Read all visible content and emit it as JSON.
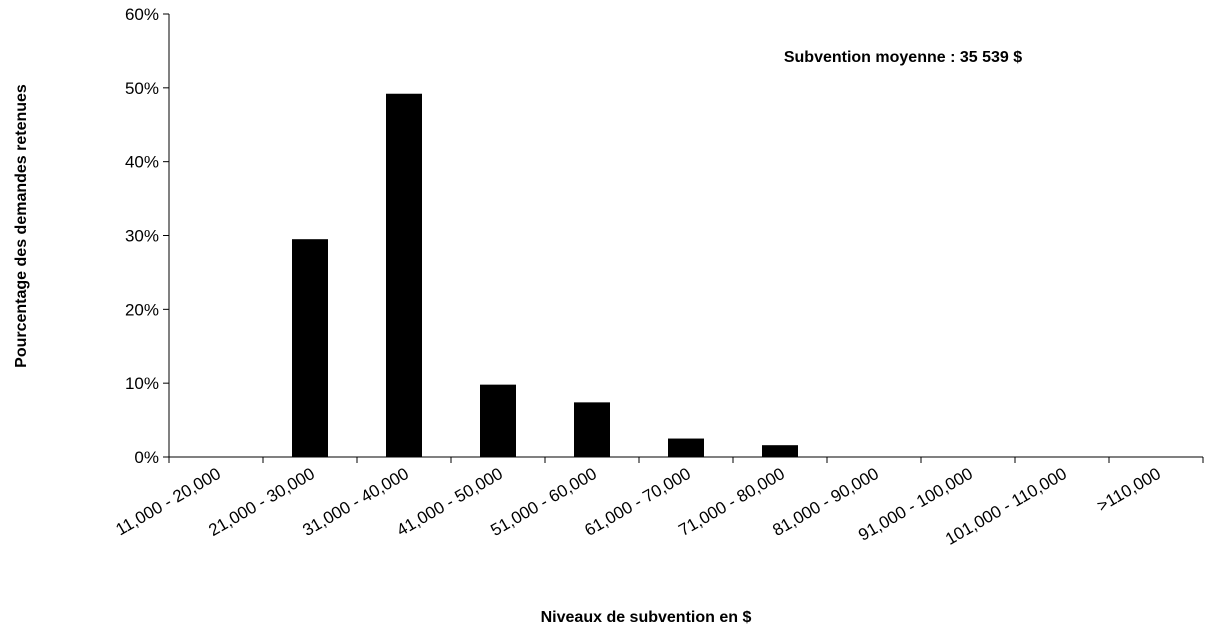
{
  "chart_data": {
    "type": "bar",
    "title": "",
    "xlabel": "Niveaux de subvention en $",
    "ylabel": "Pourcentage des demandes retenues",
    "annotation": "Subvention moyenne : 35 539 $",
    "categories": [
      "11,000 - 20,000",
      "21,000 - 30,000",
      "31,000 - 40,000",
      "41,000 - 50,000",
      "51,000 - 60,000",
      "61,000 - 70,000",
      "71,000 - 80,000",
      "81,000 - 90,000",
      "91,000 - 100,000",
      "101,000 - 110,000",
      ">110,000"
    ],
    "values": [
      0,
      29.5,
      49.2,
      9.8,
      7.4,
      2.5,
      1.6,
      0,
      0,
      0,
      0
    ],
    "ylim": [
      0,
      60
    ],
    "yticks": [
      "0%",
      "10%",
      "20%",
      "30%",
      "40%",
      "50%",
      "60%"
    ],
    "grid": false,
    "legend": "none",
    "bar_color": "#000000"
  }
}
